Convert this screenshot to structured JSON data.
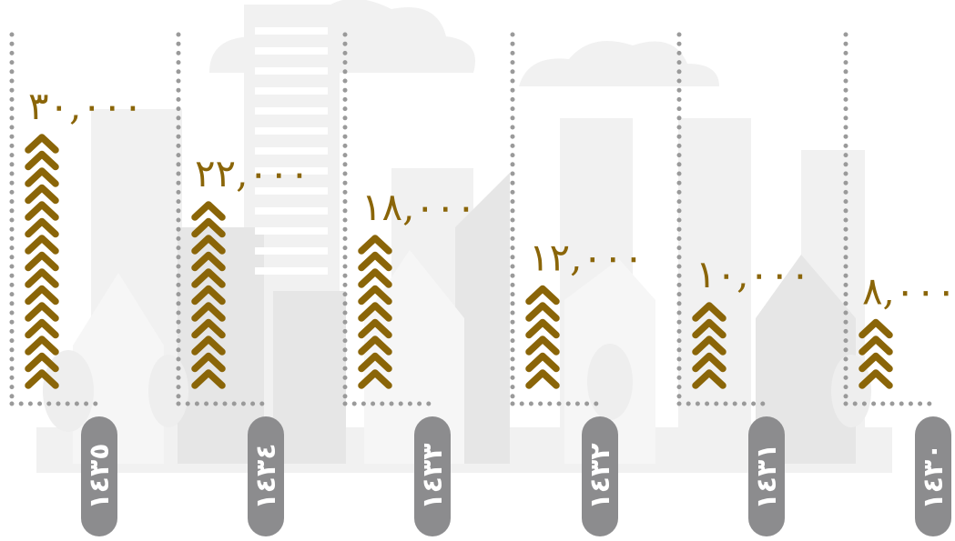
{
  "chart_data": {
    "type": "bar",
    "categories": [
      "١٤٣٥",
      "١٤٣٤",
      "١٤٣٣",
      "١٤٣٢",
      "١٤٣١",
      "١٤٣٠"
    ],
    "values": [
      30000,
      22000,
      18000,
      12000,
      10000,
      8000
    ],
    "value_labels": [
      "٣٠,٠٠٠",
      "٢٢,٠٠٠",
      "١٨,٠٠٠",
      "١٢,٠٠٠",
      "١٠,٠٠٠",
      "٨,٠٠٠"
    ],
    "ylim": [
      0,
      30000
    ],
    "grid": false,
    "legend": "none",
    "title": "",
    "xlabel": "",
    "ylabel": ""
  },
  "colors": {
    "mark": "#8a6508",
    "value_text": "#8a6508",
    "dots": "#9a9a9a",
    "pill": "#8c8c8e",
    "pill_text": "#ffffff",
    "background_city": "#f1f1f1",
    "background_city_dark": "#e6e6e6"
  },
  "icons": {
    "mark": "chevron-up-icon",
    "background": "city-skyline"
  }
}
